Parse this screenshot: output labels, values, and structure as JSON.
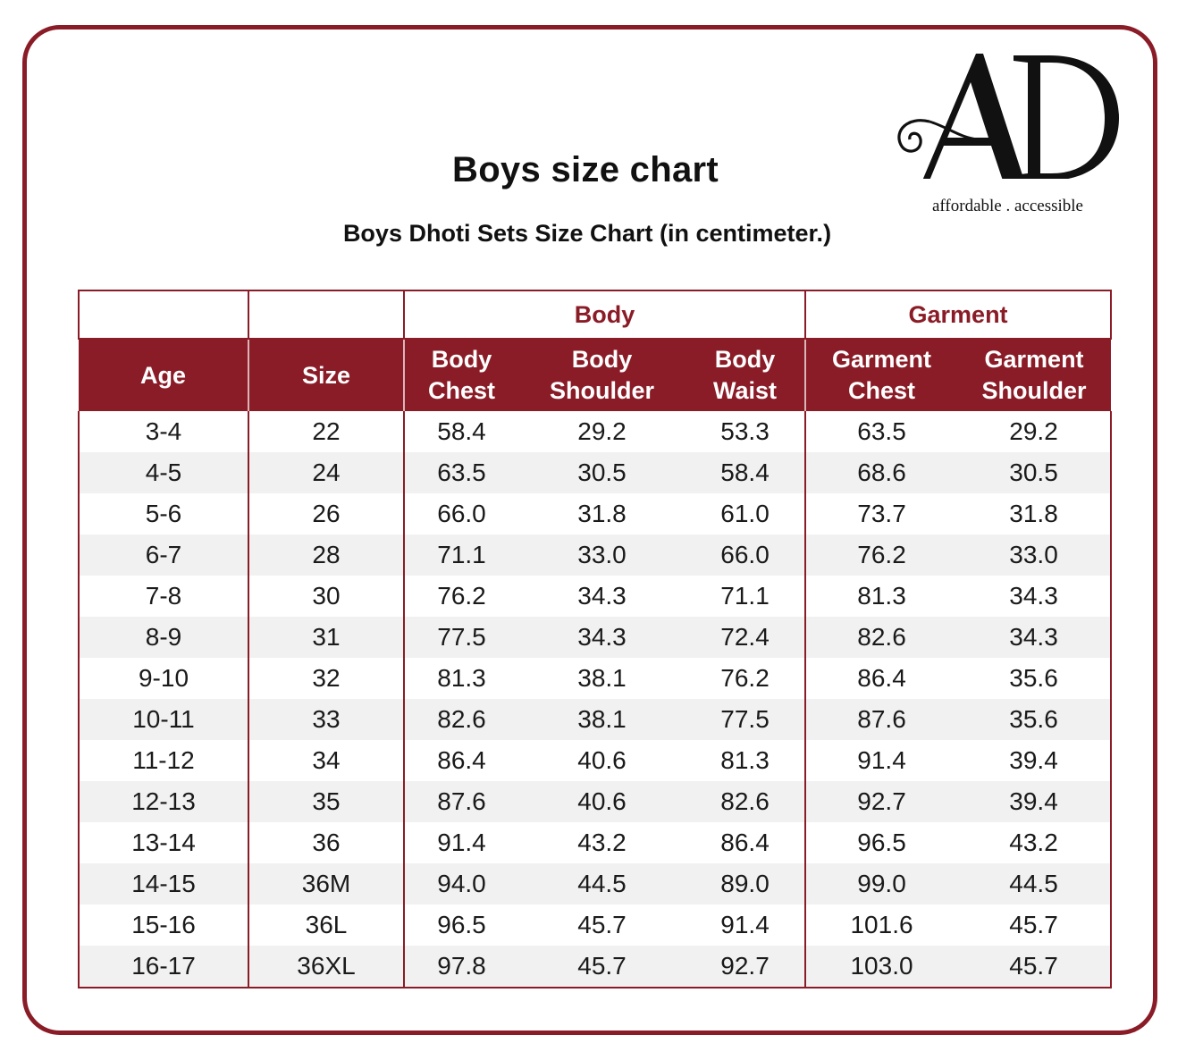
{
  "page": {
    "title": "Boys size chart",
    "subtitle": "Boys Dhoti Sets Size Chart (in centimeter.)"
  },
  "logo": {
    "letters": "AD",
    "tagline": "affordable . accessible"
  },
  "table": {
    "groups": {
      "body": "Body",
      "garment": "Garment"
    },
    "headers": {
      "age": "Age",
      "size": "Size",
      "body_chest": [
        "Body",
        "Chest"
      ],
      "body_shoulder": [
        "Body",
        "Shoulder"
      ],
      "body_waist": [
        "Body",
        "Waist"
      ],
      "garment_chest": [
        "Garment",
        "Chest"
      ],
      "garment_shoulder": [
        "Garment",
        "Shoulder"
      ]
    },
    "rows": [
      [
        "3-4",
        "22",
        "58.4",
        "29.2",
        "53.3",
        "63.5",
        "29.2"
      ],
      [
        "4-5",
        "24",
        "63.5",
        "30.5",
        "58.4",
        "68.6",
        "30.5"
      ],
      [
        "5-6",
        "26",
        "66.0",
        "31.8",
        "61.0",
        "73.7",
        "31.8"
      ],
      [
        "6-7",
        "28",
        "71.1",
        "33.0",
        "66.0",
        "76.2",
        "33.0"
      ],
      [
        "7-8",
        "30",
        "76.2",
        "34.3",
        "71.1",
        "81.3",
        "34.3"
      ],
      [
        "8-9",
        "31",
        "77.5",
        "34.3",
        "72.4",
        "82.6",
        "34.3"
      ],
      [
        "9-10",
        "32",
        "81.3",
        "38.1",
        "76.2",
        "86.4",
        "35.6"
      ],
      [
        "10-11",
        "33",
        "82.6",
        "38.1",
        "77.5",
        "87.6",
        "35.6"
      ],
      [
        "11-12",
        "34",
        "86.4",
        "40.6",
        "81.3",
        "91.4",
        "39.4"
      ],
      [
        "12-13",
        "35",
        "87.6",
        "40.6",
        "82.6",
        "92.7",
        "39.4"
      ],
      [
        "13-14",
        "36",
        "91.4",
        "43.2",
        "86.4",
        "96.5",
        "43.2"
      ],
      [
        "14-15",
        "36M",
        "94.0",
        "44.5",
        "89.0",
        "99.0",
        "44.5"
      ],
      [
        "15-16",
        "36L",
        "96.5",
        "45.7",
        "91.4",
        "101.6",
        "45.7"
      ],
      [
        "16-17",
        "36XL",
        "97.8",
        "45.7",
        "92.7",
        "103.0",
        "45.7"
      ]
    ]
  },
  "colors": {
    "accent": "#8a1c27",
    "stripe": "#f1f1f1"
  }
}
